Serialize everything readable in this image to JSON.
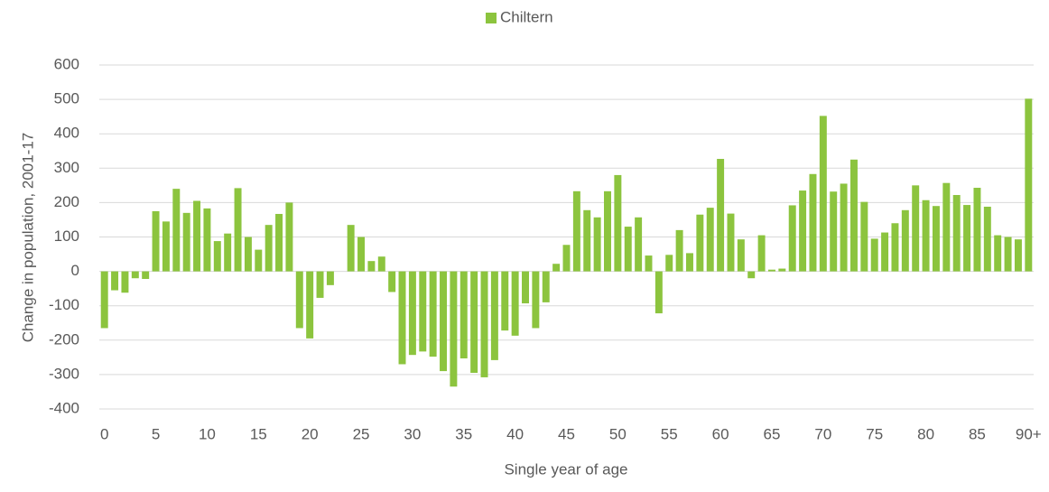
{
  "chart_data": {
    "type": "bar",
    "y_axis_label": "Change in population, 2001-17",
    "x_axis_label": "Single year of age",
    "categories": [
      "0",
      null,
      null,
      null,
      null,
      "5",
      null,
      null,
      null,
      null,
      "10",
      null,
      null,
      null,
      null,
      "15",
      null,
      null,
      null,
      null,
      "20",
      null,
      null,
      null,
      null,
      "25",
      null,
      null,
      null,
      null,
      "30",
      null,
      null,
      null,
      null,
      "35",
      null,
      null,
      null,
      null,
      "40",
      null,
      null,
      null,
      null,
      "45",
      null,
      null,
      null,
      null,
      "50",
      null,
      null,
      null,
      null,
      "55",
      null,
      null,
      null,
      null,
      "60",
      null,
      null,
      null,
      null,
      "65",
      null,
      null,
      null,
      null,
      "70",
      null,
      null,
      null,
      null,
      "75",
      null,
      null,
      null,
      null,
      "80",
      null,
      null,
      null,
      null,
      "85",
      null,
      null,
      null,
      null,
      "90+"
    ],
    "series": [
      {
        "name": "Chiltern",
        "color": "#8cc43e",
        "values": [
          -165,
          -55,
          -62,
          -20,
          -22,
          175,
          145,
          240,
          170,
          205,
          183,
          88,
          110,
          242,
          100,
          63,
          135,
          167,
          200,
          -165,
          -195,
          -77,
          -40,
          0,
          135,
          100,
          30,
          43,
          -60,
          -270,
          -243,
          -233,
          -248,
          -290,
          -335,
          -253,
          -295,
          -308,
          -258,
          -172,
          -187,
          -93,
          -165,
          -90,
          22,
          77,
          233,
          178,
          157,
          233,
          280,
          130,
          157,
          46,
          -122,
          48,
          120,
          53,
          165,
          185,
          327,
          168,
          93,
          -20,
          105,
          5,
          8,
          192,
          235,
          283,
          452,
          232,
          255,
          325,
          202,
          95,
          113,
          140,
          178,
          250,
          207,
          190,
          257,
          222,
          193,
          243,
          188,
          105,
          100,
          93,
          502
        ]
      }
    ],
    "ylim": [
      -400,
      600
    ],
    "yticks": [
      -400,
      -300,
      -200,
      -100,
      0,
      100,
      200,
      300,
      400,
      500,
      600
    ],
    "grid": true,
    "legend": "top"
  }
}
